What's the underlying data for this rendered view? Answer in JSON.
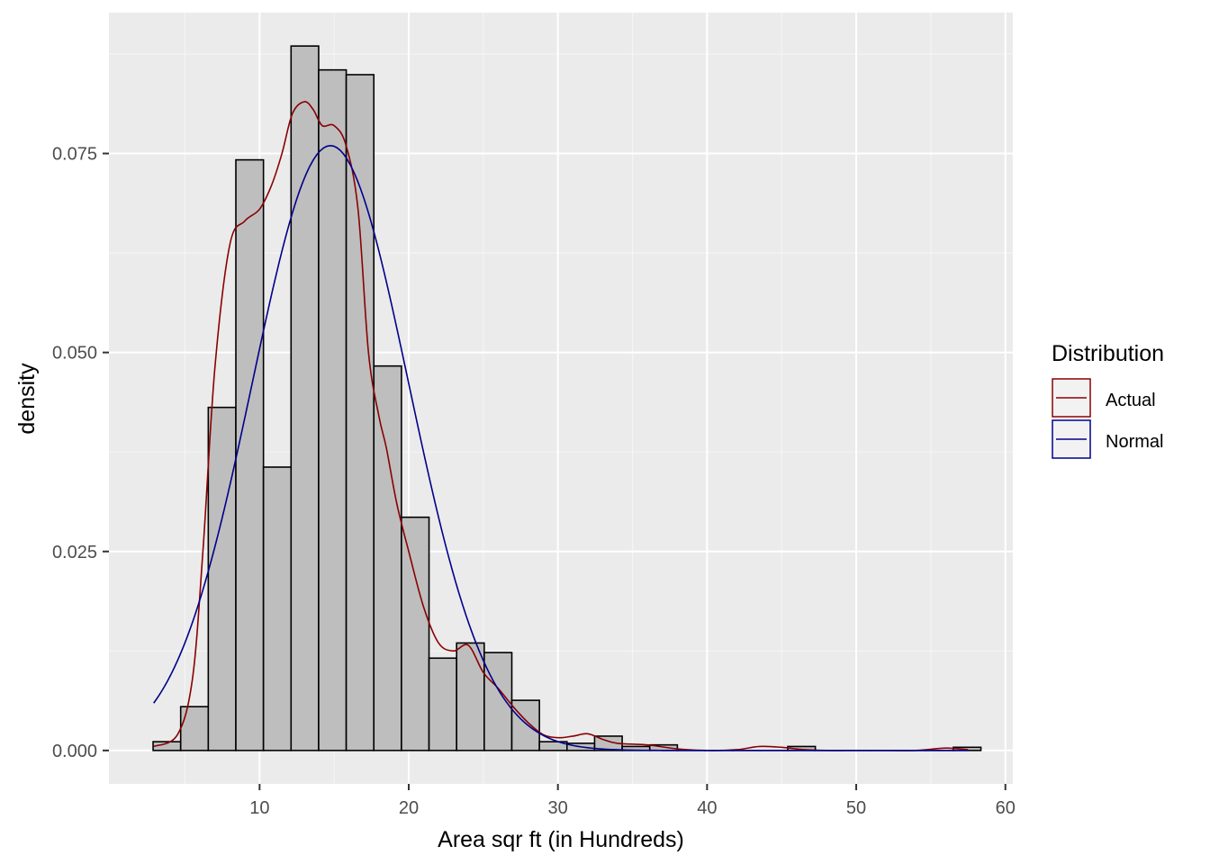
{
  "chart_data": {
    "type": "bar",
    "xlabel": "Area sqr ft (in Hundreds)",
    "ylabel": "density",
    "xlim": [
      -0.1,
      60.5
    ],
    "ylim": [
      -0.0042,
      0.0927
    ],
    "x_ticks": [
      10,
      20,
      30,
      40,
      50,
      60
    ],
    "x_tick_labels": [
      "10",
      "20",
      "30",
      "40",
      "50",
      "60"
    ],
    "y_ticks": [
      0,
      0.025,
      0.05,
      0.075
    ],
    "y_tick_labels": [
      "0.000",
      "0.025",
      "0.050",
      "0.075"
    ],
    "grid": true,
    "legend_position": "right",
    "histogram": {
      "bin_edges": [
        2.86,
        4.71,
        6.56,
        8.41,
        10.26,
        12.11,
        13.96,
        15.81,
        17.66,
        19.51,
        21.36,
        23.21,
        25.06,
        26.91,
        28.76,
        30.61,
        32.46,
        34.31,
        36.16,
        38.01,
        39.86,
        41.71,
        43.56,
        45.41,
        47.26,
        49.11,
        50.96,
        52.81,
        54.66,
        56.51,
        58.36
      ],
      "values": [
        0.0011,
        0.0055,
        0.0431,
        0.0742,
        0.0356,
        0.0885,
        0.0855,
        0.0849,
        0.0483,
        0.0293,
        0.0116,
        0.0135,
        0.0123,
        0.0063,
        0.0011,
        0.0009,
        0.0018,
        0.0005,
        0.0007,
        0.0,
        0.0,
        0.0,
        0.0,
        0.0005,
        0.0,
        0.0,
        0.0,
        0.0,
        0.0,
        0.0004
      ],
      "fill": "#bebebe",
      "stroke": "#000000"
    },
    "series": [
      {
        "name": "Actual",
        "color": "#8b0000",
        "x": [
          2.9,
          4.5,
          5.5,
          6.2,
          7.0,
          8.0,
          9.0,
          10.0,
          10.8,
          11.5,
          12.2,
          13.0,
          13.6,
          14.2,
          15.0,
          15.8,
          16.6,
          17.3,
          18.0,
          18.5,
          19.2,
          20.0,
          21.0,
          22.0,
          23.0,
          24.0,
          25.0,
          26.0,
          27.0,
          28.0,
          29.0,
          30.0,
          31.0,
          32.0,
          33.0,
          34.0,
          36.0,
          38.0,
          40.0,
          42.0,
          43.5,
          45.0,
          46.5,
          48.0,
          50.0,
          52.0,
          54.0,
          56.0,
          57.5
        ],
        "y": [
          0.0005,
          0.002,
          0.009,
          0.025,
          0.048,
          0.0635,
          0.0665,
          0.068,
          0.071,
          0.075,
          0.08,
          0.0815,
          0.0805,
          0.0785,
          0.0785,
          0.076,
          0.068,
          0.05,
          0.042,
          0.038,
          0.031,
          0.025,
          0.018,
          0.0135,
          0.0125,
          0.0132,
          0.0098,
          0.0078,
          0.0055,
          0.0035,
          0.002,
          0.0016,
          0.0018,
          0.0021,
          0.0014,
          0.0009,
          0.0007,
          0.0002,
          0.0,
          0.0001,
          0.0005,
          0.0004,
          0.0001,
          0.0,
          0.0,
          0.0,
          0.0,
          0.0003,
          0.0001
        ]
      },
      {
        "name": "Normal",
        "color": "#00008b",
        "mean": 14.75,
        "sd": 5.25,
        "x_range": [
          2.9,
          57.5
        ]
      }
    ]
  },
  "legend": {
    "title": "Distribution",
    "items": [
      {
        "label": "Actual",
        "color": "#8b0000"
      },
      {
        "label": "Normal",
        "color": "#00008b"
      }
    ]
  },
  "colors": {
    "panel_background": "#ebebeb",
    "grid_major": "#ffffff",
    "grid_minor": "#f5f5f5",
    "legend_key_background": "#f2f2f2"
  }
}
